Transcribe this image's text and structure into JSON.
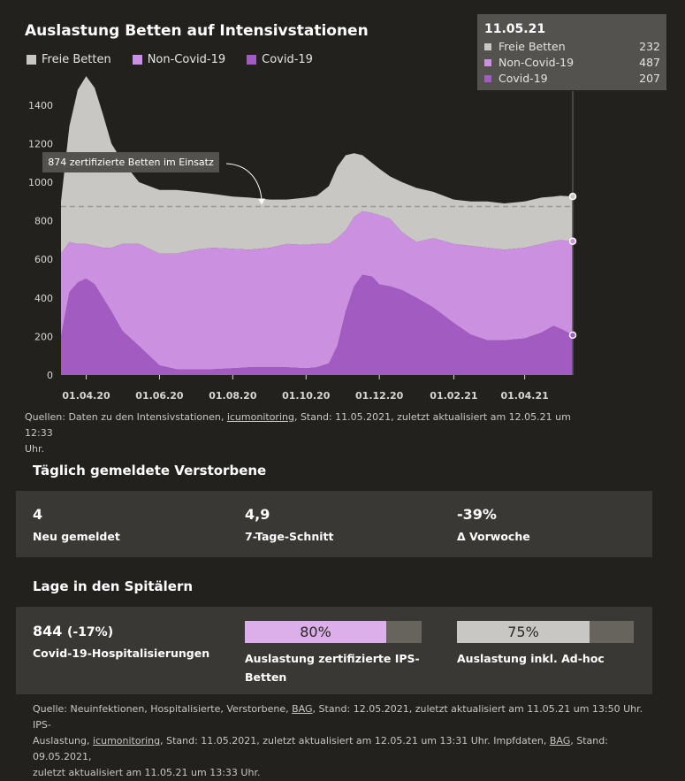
{
  "chart_data": {
    "type": "area",
    "title": "Auslastung Betten auf Intensivstationen",
    "ylim": [
      0,
      1500
    ],
    "yticks": [
      0,
      200,
      400,
      600,
      800,
      1000,
      1200,
      1400
    ],
    "xlim": [
      "2020-03-11",
      "2021-05-11"
    ],
    "xticks": [
      {
        "date": "2020-04-01",
        "label": "01.04.20"
      },
      {
        "date": "2020-06-01",
        "label": "01.06.20"
      },
      {
        "date": "2020-08-01",
        "label": "01.08.20"
      },
      {
        "date": "2020-10-01",
        "label": "01.10.20"
      },
      {
        "date": "2020-12-01",
        "label": "01.12.20"
      },
      {
        "date": "2021-02-01",
        "label": "01.02.21"
      },
      {
        "date": "2021-04-01",
        "label": "01.04.21"
      }
    ],
    "grid": false,
    "legend_position": "top-left",
    "x": [
      "2020-03-11",
      "2020-03-18",
      "2020-03-25",
      "2020-04-01",
      "2020-04-08",
      "2020-04-15",
      "2020-04-22",
      "2020-05-01",
      "2020-05-15",
      "2020-06-01",
      "2020-06-15",
      "2020-07-01",
      "2020-07-15",
      "2020-08-01",
      "2020-08-15",
      "2020-09-01",
      "2020-09-15",
      "2020-10-01",
      "2020-10-10",
      "2020-10-20",
      "2020-10-27",
      "2020-11-03",
      "2020-11-10",
      "2020-11-17",
      "2020-11-25",
      "2020-12-01",
      "2020-12-10",
      "2020-12-20",
      "2021-01-01",
      "2021-01-15",
      "2021-02-01",
      "2021-02-15",
      "2021-03-01",
      "2021-03-15",
      "2021-04-01",
      "2021-04-15",
      "2021-04-25",
      "2021-05-01",
      "2021-05-11"
    ],
    "series": [
      {
        "name": "Covid-19",
        "color": "#a25bc0",
        "values": [
          200,
          430,
          480,
          500,
          470,
          400,
          330,
          230,
          150,
          50,
          30,
          30,
          30,
          35,
          40,
          40,
          40,
          35,
          40,
          60,
          150,
          330,
          460,
          520,
          510,
          470,
          460,
          440,
          400,
          350,
          270,
          210,
          180,
          180,
          190,
          220,
          255,
          240,
          207
        ]
      },
      {
        "name": "Non-Covid-19",
        "color": "#cc90e0",
        "values": [
          430,
          260,
          200,
          180,
          200,
          260,
          330,
          450,
          530,
          580,
          600,
          620,
          630,
          620,
          610,
          620,
          640,
          640,
          640,
          620,
          560,
          420,
          360,
          330,
          330,
          360,
          350,
          300,
          290,
          360,
          410,
          460,
          480,
          470,
          470,
          460,
          440,
          460,
          487
        ]
      },
      {
        "name": "Freie Betten",
        "color": "#c8c7c3",
        "values": [
          270,
          600,
          800,
          870,
          820,
          690,
          540,
          430,
          320,
          330,
          330,
          300,
          280,
          270,
          270,
          250,
          230,
          245,
          250,
          300,
          370,
          390,
          330,
          290,
          260,
          240,
          220,
          260,
          280,
          240,
          230,
          230,
          240,
          240,
          240,
          240,
          230,
          230,
          232
        ]
      }
    ],
    "reference_line": {
      "value": 874,
      "label": "874 zertifizierte Betten im Einsatz"
    },
    "tooltip": {
      "date": "11.05.21",
      "rows": [
        {
          "label": "Freie Betten",
          "value": "232",
          "color": "#c8c7c3"
        },
        {
          "label": "Non-Covid-19",
          "value": "487",
          "color": "#cc90e0"
        },
        {
          "label": "Covid-19",
          "value": "207",
          "color": "#a25bc0"
        }
      ]
    }
  },
  "legend": [
    {
      "label": "Freie Betten",
      "color": "#c8c7c3"
    },
    {
      "label": "Non-Covid-19",
      "color": "#cc90e0"
    },
    {
      "label": "Covid-19",
      "color": "#a25bc0"
    }
  ],
  "source1": {
    "prefix": "Quellen: Daten zu den Intensivstationen, ",
    "link": "icumonitoring",
    "line1_rest": ", Stand: 11.05.2021, zuletzt aktualisiert am 12.05.21 um 12:33",
    "line2": "Uhr."
  },
  "deaths": {
    "title": "Täglich gemeldete Verstorbene",
    "stats": [
      {
        "value": "4",
        "label": "Neu gemeldet"
      },
      {
        "value": "4,9",
        "label": "7-Tage-Schnitt"
      },
      {
        "value": "-39%",
        "label": "Δ Vorwoche"
      }
    ]
  },
  "hospital": {
    "title": "Lage in den Spitälern",
    "hosp_value": "844",
    "hosp_change": "(-17%)",
    "hosp_label": "Covid-19-Hospitalisierungen",
    "bar1": {
      "value": 0.8,
      "text": "80%",
      "label_line1": "Auslastung zertifizierte IPS-",
      "label_line2": "Betten",
      "color": "#dcaeea"
    },
    "bar2": {
      "value": 0.75,
      "text": "75%",
      "label": "Auslastung inkl. Ad-hoc",
      "color": "#c8c7c3"
    }
  },
  "source2": {
    "l1_a": "Quelle: Neuinfektionen, Hospitalisierte, Verstorbene, ",
    "l1_link": "BAG",
    "l1_b": ", Stand: 12.05.2021, zuletzt aktualisiert am 11.05.21 um 13:50 Uhr. IPS-",
    "l2_a": "Auslastung, ",
    "l2_link1": "icumonitoring",
    "l2_b": ", Stand: 11.05.2021, zuletzt aktualisiert am 12.05.21 um 13:31 Uhr. Impfdaten, ",
    "l2_link2": "BAG",
    "l2_c": ", Stand: 09.05.2021,",
    "l3": "zuletzt aktualisiert am 11.05.21 um 13:33 Uhr."
  }
}
